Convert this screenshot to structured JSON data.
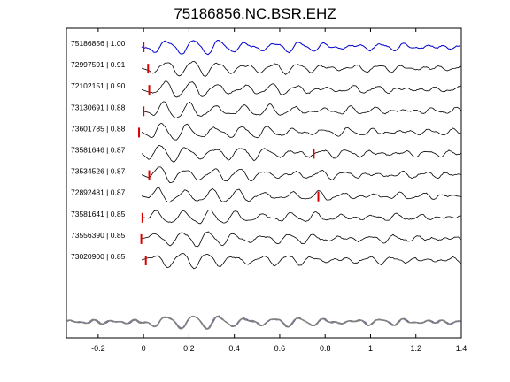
{
  "chart_data": {
    "type": "line",
    "title": "75186856.NC.BSR.EHZ",
    "xlim": [
      -0.34,
      1.4
    ],
    "xticks": [
      "-0.2",
      "0",
      "0.2",
      "0.4",
      "0.6",
      "0.8",
      "1",
      "1.2",
      "1.4"
    ],
    "xtick_values": [
      -0.2,
      0,
      0.2,
      0.4,
      0.6,
      0.8,
      1.0,
      1.2,
      1.4
    ],
    "grid": false,
    "colors": {
      "reference": "#0000cc",
      "trace": "#000000",
      "pick": "#dd0000",
      "stack": "#808080"
    },
    "series": [
      {
        "name": "75186856 | 1.00",
        "picks": [
          0.0
        ]
      },
      {
        "name": "72997591 | 0.91",
        "picks": [
          0.02
        ]
      },
      {
        "name": "72102151 | 0.90",
        "picks": [
          0.025
        ]
      },
      {
        "name": "73130691 | 0.88",
        "picks": [
          0.0
        ]
      },
      {
        "name": "73601785 | 0.88",
        "picks": [
          -0.02
        ]
      },
      {
        "name": "73581646 | 0.87",
        "picks": [
          0.75
        ]
      },
      {
        "name": "73534526 | 0.87",
        "picks": [
          0.025
        ]
      },
      {
        "name": "72892481 | 0.87",
        "picks": [
          0.77
        ]
      },
      {
        "name": "73581641 | 0.85",
        "picks": [
          -0.005
        ]
      },
      {
        "name": "73556390 | 0.85",
        "picks": [
          -0.01
        ]
      },
      {
        "name": "73020900 | 0.85",
        "picks": [
          0.01
        ]
      }
    ]
  }
}
